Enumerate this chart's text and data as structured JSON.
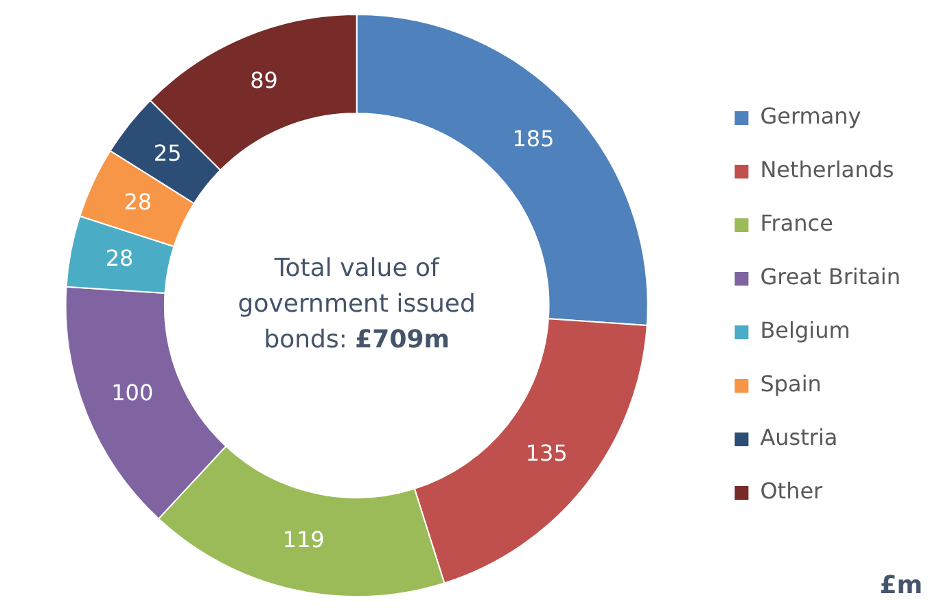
{
  "chart_data": {
    "type": "donut",
    "categories": [
      "Germany",
      "Netherlands",
      "France",
      "Great Britain",
      "Belgium",
      "Spain",
      "Austria",
      "Other"
    ],
    "values": [
      185,
      135,
      119,
      100,
      28,
      28,
      25,
      89
    ],
    "colors": [
      "#4f81bd",
      "#c0504d",
      "#9bbb59",
      "#8064a2",
      "#4bacc6",
      "#f79646",
      "#2c4d75",
      "#772c2a"
    ],
    "data_labels": true,
    "legend": "right",
    "annotations": [
      "Total value of government issued bonds:",
      "£709m",
      "£m"
    ]
  }
}
